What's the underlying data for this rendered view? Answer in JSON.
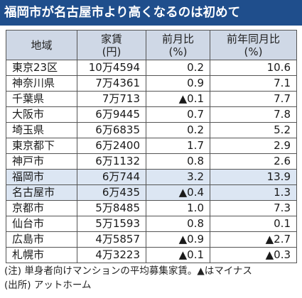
{
  "title": "福岡市が名古屋市より高くなるのは初めて",
  "headers": {
    "region": "地域",
    "rent": "家賃\n(円)",
    "mom": "前月比\n(%)",
    "yoy": "前年同月比\n(%)"
  },
  "rows": [
    {
      "region": "東京23区",
      "rent": "10万4594",
      "mom": "0.2",
      "yoy": "10.6"
    },
    {
      "region": "神奈川県",
      "rent": "7万4361",
      "mom": "0.9",
      "yoy": "7.1"
    },
    {
      "region": "千葉県",
      "rent": "7万713",
      "mom": "▲0.1",
      "yoy": "7.7"
    },
    {
      "region": "大阪市",
      "rent": "6万9445",
      "mom": "0.7",
      "yoy": "7.8"
    },
    {
      "region": "埼玉県",
      "rent": "6万6835",
      "mom": "0.2",
      "yoy": "5.2"
    },
    {
      "region": "東京都下",
      "rent": "6万2400",
      "mom": "1.7",
      "yoy": "2.9"
    },
    {
      "region": "神戸市",
      "rent": "6万1132",
      "mom": "0.8",
      "yoy": "2.6"
    },
    {
      "region": "福岡市",
      "rent": "6万744",
      "mom": "3.2",
      "yoy": "13.9"
    },
    {
      "region": "名古屋市",
      "rent": "6万435",
      "mom": "▲0.4",
      "yoy": "1.3"
    },
    {
      "region": "京都市",
      "rent": "5万8485",
      "mom": "1.0",
      "yoy": "7.3"
    },
    {
      "region": "仙台市",
      "rent": "5万1593",
      "mom": "0.8",
      "yoy": "0.1"
    },
    {
      "region": "広島市",
      "rent": "4万5857",
      "mom": "▲0.9",
      "yoy": "▲2.7"
    },
    {
      "region": "札幌市",
      "rent": "4万3223",
      "mom": "▲0.1",
      "yoy": "▲0.3"
    }
  ],
  "notes": {
    "note": "(注) 単身者向けマンションの平均募集家賃。▲はマイナス",
    "source": "(出所) アットホーム"
  },
  "colors": {
    "title_bg": "#1f4e8c",
    "header_bg": "#cfd8e6",
    "highlight_bg": "#dce6f3"
  }
}
